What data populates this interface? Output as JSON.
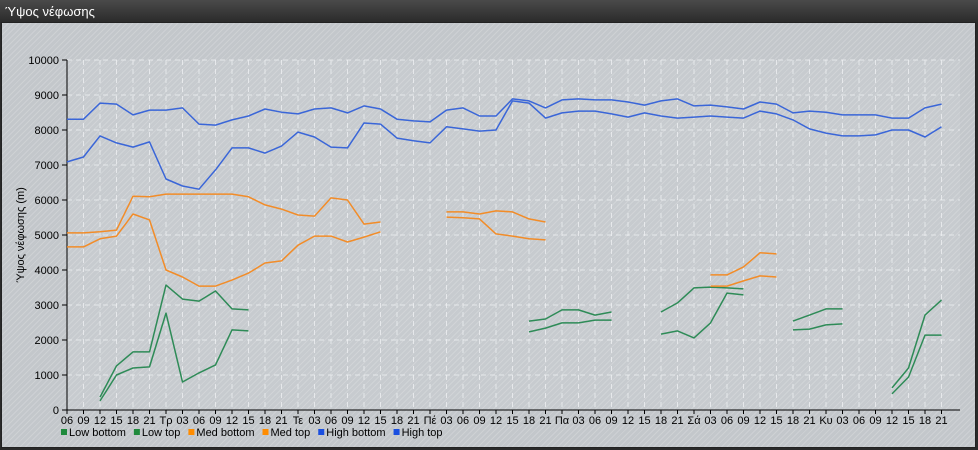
{
  "window": {
    "title": "Ύψος νέφωσης"
  },
  "chart_data": {
    "type": "line",
    "title": "",
    "xlabel": "",
    "ylabel": "Ύψος νέφωσης (m)",
    "ylim": [
      0,
      10000
    ],
    "yticks": [
      0,
      1000,
      2000,
      3000,
      4000,
      5000,
      6000,
      7000,
      8000,
      9000,
      10000
    ],
    "grid": true,
    "legend_position": "bottom-left",
    "categories": [
      "06",
      "09",
      "12",
      "15",
      "18",
      "21",
      "Τρ",
      "03",
      "06",
      "09",
      "12",
      "15",
      "18",
      "21",
      "Τε",
      "03",
      "06",
      "09",
      "12",
      "15",
      "18",
      "21",
      "Πέ",
      "03",
      "06",
      "09",
      "12",
      "15",
      "18",
      "21",
      "Πα",
      "03",
      "06",
      "09",
      "12",
      "15",
      "18",
      "21",
      "Σά",
      "03",
      "06",
      "09",
      "12",
      "15",
      "18",
      "21",
      "Κυ",
      "03",
      "06",
      "09",
      "12",
      "15",
      "18",
      "21"
    ],
    "series": [
      {
        "name": "Low bottom",
        "color": "#2e8b57",
        "legend_color": "#1f8a3c",
        "values": [
          null,
          null,
          260,
          1000,
          1200,
          1230,
          2770,
          800,
          1060,
          1290,
          2290,
          2260,
          null,
          null,
          null,
          null,
          null,
          null,
          null,
          null,
          null,
          null,
          null,
          null,
          null,
          null,
          null,
          null,
          2230,
          2340,
          2490,
          2490,
          2570,
          2570,
          null,
          null,
          2170,
          2260,
          2060,
          2490,
          3340,
          3290,
          null,
          null,
          2290,
          2310,
          2430,
          2460,
          null,
          null,
          460,
          940,
          2140,
          2140
        ]
      },
      {
        "name": "Low top",
        "color": "#2e8b57",
        "legend_color": "#1f8a3c",
        "values": [
          null,
          null,
          370,
          1260,
          1660,
          1660,
          3570,
          3170,
          3110,
          3400,
          2890,
          2860,
          null,
          null,
          null,
          null,
          null,
          null,
          null,
          null,
          null,
          null,
          null,
          null,
          null,
          null,
          null,
          null,
          2540,
          2600,
          2860,
          2860,
          2710,
          2800,
          null,
          null,
          2800,
          3060,
          3490,
          3510,
          3490,
          3460,
          null,
          null,
          2540,
          2710,
          2890,
          2890,
          null,
          null,
          630,
          1200,
          2710,
          3140
        ]
      },
      {
        "name": "Med bottom",
        "color": "#f28c28",
        "legend_color": "#ff8c00",
        "values": [
          4660,
          4660,
          4890,
          4970,
          5600,
          5430,
          4000,
          3800,
          3540,
          3540,
          3710,
          3910,
          4200,
          4260,
          4710,
          4970,
          4970,
          4800,
          4940,
          5090,
          null,
          null,
          null,
          5510,
          5490,
          5460,
          5030,
          4970,
          4890,
          4860,
          null,
          null,
          null,
          null,
          null,
          null,
          null,
          null,
          null,
          3540,
          3540,
          3690,
          3830,
          3800,
          null,
          null,
          null,
          null,
          null,
          null,
          null,
          null,
          null,
          null
        ]
      },
      {
        "name": "Med top",
        "color": "#f28c28",
        "legend_color": "#ff8c00",
        "values": [
          5060,
          5060,
          5090,
          5140,
          6110,
          6090,
          6170,
          6170,
          6170,
          6170,
          6170,
          6090,
          5860,
          5740,
          5570,
          5540,
          6060,
          6000,
          5310,
          5370,
          null,
          null,
          null,
          5660,
          5660,
          5600,
          5690,
          5660,
          5460,
          5370,
          null,
          null,
          null,
          null,
          null,
          null,
          null,
          null,
          null,
          3860,
          3860,
          4090,
          4490,
          4460,
          null,
          null,
          null,
          null,
          null,
          null,
          null,
          null,
          null,
          null
        ]
      },
      {
        "name": "High bottom",
        "color": "#3a66d8",
        "legend_color": "#1a4fe0",
        "values": [
          7090,
          7230,
          7830,
          7630,
          7510,
          7660,
          6600,
          6400,
          6310,
          6860,
          7490,
          7490,
          7340,
          7540,
          7940,
          7800,
          7510,
          7490,
          8200,
          8170,
          7770,
          7690,
          7630,
          8090,
          8030,
          7970,
          8000,
          8830,
          8770,
          8340,
          8490,
          8540,
          8540,
          8460,
          8370,
          8490,
          8400,
          8340,
          8370,
          8400,
          8370,
          8340,
          8540,
          8460,
          8290,
          8030,
          7910,
          7830,
          7830,
          7860,
          8000,
          8000,
          7800,
          8090
        ]
      },
      {
        "name": "High top",
        "color": "#3a66d8",
        "legend_color": "#1a4fe0",
        "values": [
          8310,
          8310,
          8770,
          8740,
          8430,
          8570,
          8570,
          8630,
          8170,
          8140,
          8290,
          8400,
          8600,
          8510,
          8460,
          8600,
          8630,
          8490,
          8690,
          8600,
          8310,
          8260,
          8230,
          8570,
          8630,
          8400,
          8400,
          8890,
          8830,
          8630,
          8860,
          8890,
          8860,
          8860,
          8800,
          8710,
          8830,
          8890,
          8690,
          8710,
          8660,
          8600,
          8800,
          8740,
          8490,
          8540,
          8510,
          8430,
          8430,
          8430,
          8340,
          8340,
          8630,
          8740
        ]
      }
    ]
  }
}
